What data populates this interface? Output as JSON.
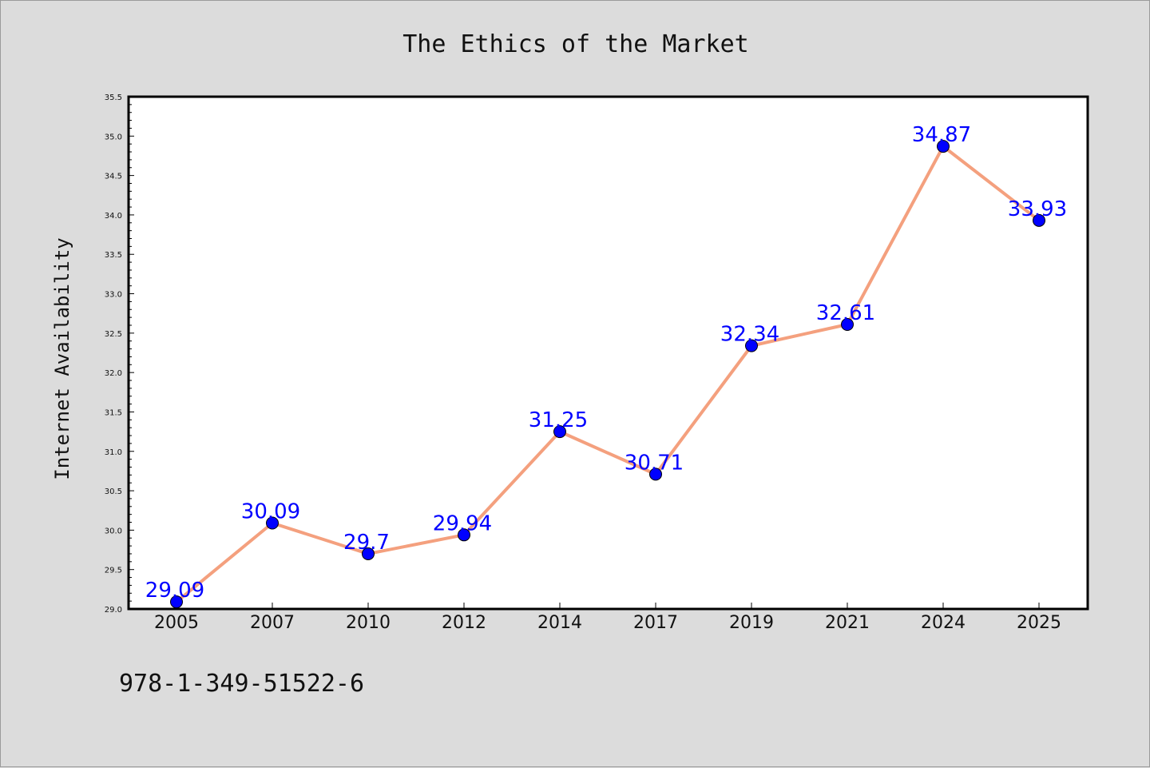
{
  "chart_data": {
    "type": "line",
    "title": "The Ethics of the Market",
    "xlabel": "",
    "ylabel": "Internet Availability",
    "categories": [
      "2005",
      "2007",
      "2010",
      "2012",
      "2014",
      "2017",
      "2019",
      "2021",
      "2024",
      "2025"
    ],
    "values": [
      29.09,
      30.09,
      29.7,
      29.94,
      31.25,
      30.71,
      32.34,
      32.61,
      34.87,
      33.93
    ],
    "data_labels": [
      "29.09",
      "30.09",
      "29.7",
      "29.94",
      "31.25",
      "30.71",
      "32.34",
      "32.61",
      "34.87",
      "33.93"
    ],
    "ylim": [
      29.0,
      35.5
    ],
    "yticks": [
      "29.0",
      "29.5",
      "30.0",
      "30.5",
      "31.0",
      "31.5",
      "32.0",
      "32.5",
      "33.0",
      "33.5",
      "34.0",
      "34.5",
      "35.0",
      "35.5"
    ],
    "grid": false,
    "legend": "none",
    "line_color": "#f4a07e",
    "marker_color": "#0000ff",
    "label_color": "#0000ff"
  },
  "footer": {
    "isbn": "978-1-349-51522-6"
  }
}
